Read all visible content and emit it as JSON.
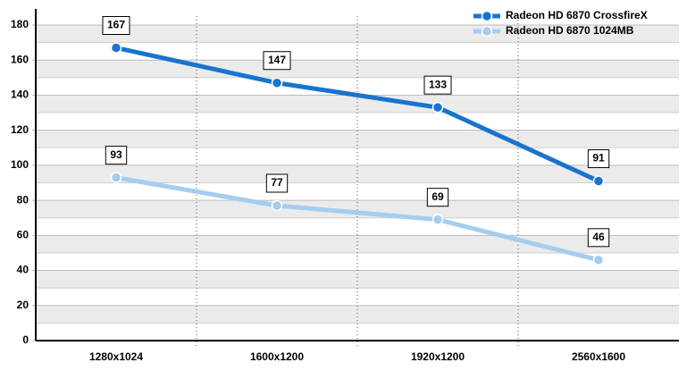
{
  "chart_data": {
    "type": "line",
    "categories": [
      "1280x1024",
      "1600x1200",
      "1920x1200",
      "2560x1600"
    ],
    "series": [
      {
        "name": "Radeon HD 6870 CrossfireX",
        "color": "#1874cd",
        "values": [
          167,
          147,
          133,
          91
        ]
      },
      {
        "name": "Radeon HD 6870 1024MB",
        "color": "#a4cdf0",
        "values": [
          93,
          77,
          69,
          46
        ]
      }
    ],
    "ylim": [
      0,
      180
    ],
    "yticks": [
      0,
      20,
      40,
      60,
      80,
      100,
      120,
      140,
      160,
      180
    ],
    "grid": true,
    "legend": "top-right"
  }
}
